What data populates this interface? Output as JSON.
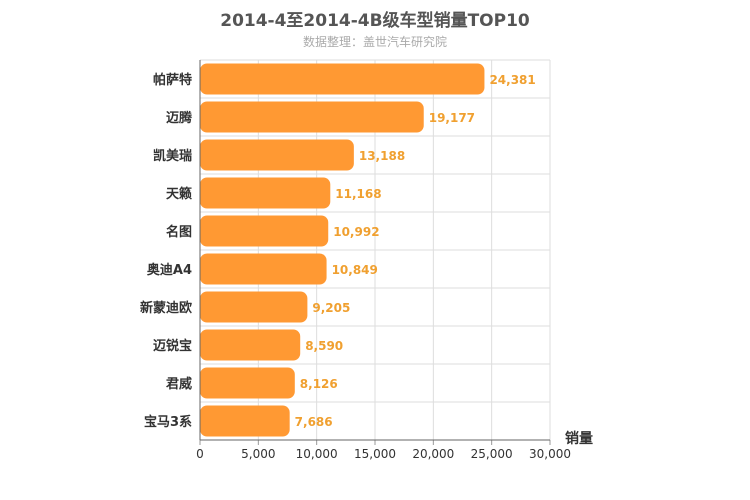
{
  "chart_data": {
    "type": "bar",
    "orientation": "horizontal",
    "title": "2014-4至2014-4B级车型销量TOP10",
    "subtitle": "数据整理：盖世汽车研究院",
    "xlabel": "销量",
    "ylabel": "",
    "xlim": [
      0,
      30000
    ],
    "ticks": [
      "0",
      "5,000",
      "10,000",
      "15,000",
      "20,000",
      "25,000",
      "30,000"
    ],
    "grid": true,
    "bar_color": "#ff9933",
    "value_label_color": "#f0a030",
    "categories": [
      "帕萨特",
      "迈腾",
      "凯美瑞",
      "天籁",
      "名图",
      "奥迪A4",
      "新蒙迪欧",
      "迈锐宝",
      "君威",
      "宝马3系"
    ],
    "values": [
      24381,
      19177,
      13188,
      11168,
      10992,
      10849,
      9205,
      8590,
      8126,
      7686
    ],
    "value_labels": [
      "24,381",
      "19,177",
      "13,188",
      "11,168",
      "10,992",
      "10,849",
      "9,205",
      "8,590",
      "8,126",
      "7,686"
    ]
  }
}
